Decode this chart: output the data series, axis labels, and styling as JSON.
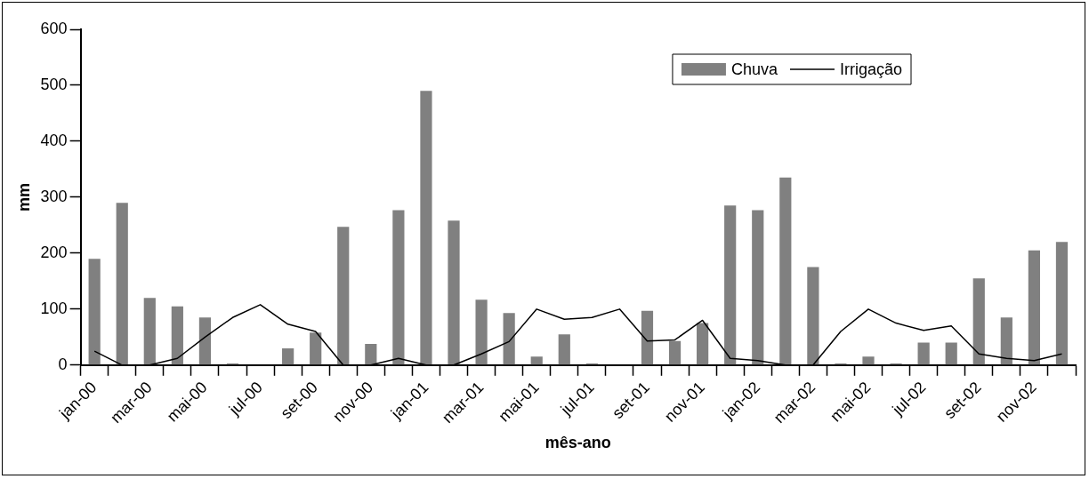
{
  "chart_data": {
    "type": "bar",
    "xlabel": "mês-ano",
    "ylabel": "mm",
    "categories": [
      "jan-00",
      null,
      "mar-00",
      null,
      "mai-00",
      null,
      "jul-00",
      null,
      "set-00",
      null,
      "nov-00",
      null,
      "jan-01",
      null,
      "mar-01",
      null,
      "mai-01",
      null,
      "jul-01",
      null,
      "set-01",
      null,
      "nov-01",
      null,
      "jan-02",
      null,
      "mar-02",
      null,
      "mai-02",
      null,
      "jul-02",
      null,
      "set-02",
      null,
      "nov-02",
      null
    ],
    "series": [
      {
        "name": "Chuva",
        "color": "#808080",
        "values": [
          190,
          290,
          120,
          105,
          85,
          3,
          0,
          30,
          58,
          247,
          38,
          277,
          490,
          258,
          117,
          93,
          15,
          55,
          3,
          0,
          97,
          43,
          75,
          285,
          277,
          335,
          175,
          3,
          15,
          3,
          40,
          40,
          155,
          85,
          205,
          220
        ]
      },
      {
        "name": "Irrigação",
        "type": "line",
        "color": "#000000",
        "values": [
          25,
          0,
          0,
          12,
          50,
          85,
          108,
          73,
          60,
          0,
          0,
          12,
          0,
          0,
          20,
          42,
          100,
          82,
          85,
          100,
          43,
          45,
          80,
          12,
          8,
          0,
          0,
          60,
          100,
          75,
          62,
          70,
          20,
          12,
          8,
          20
        ]
      }
    ],
    "ylim": [
      0,
      600
    ],
    "yticks": [
      0,
      100,
      200,
      300,
      400,
      500,
      600
    ],
    "grid": false,
    "legend": "top right",
    "marker": "none",
    "line_style": "solid"
  }
}
